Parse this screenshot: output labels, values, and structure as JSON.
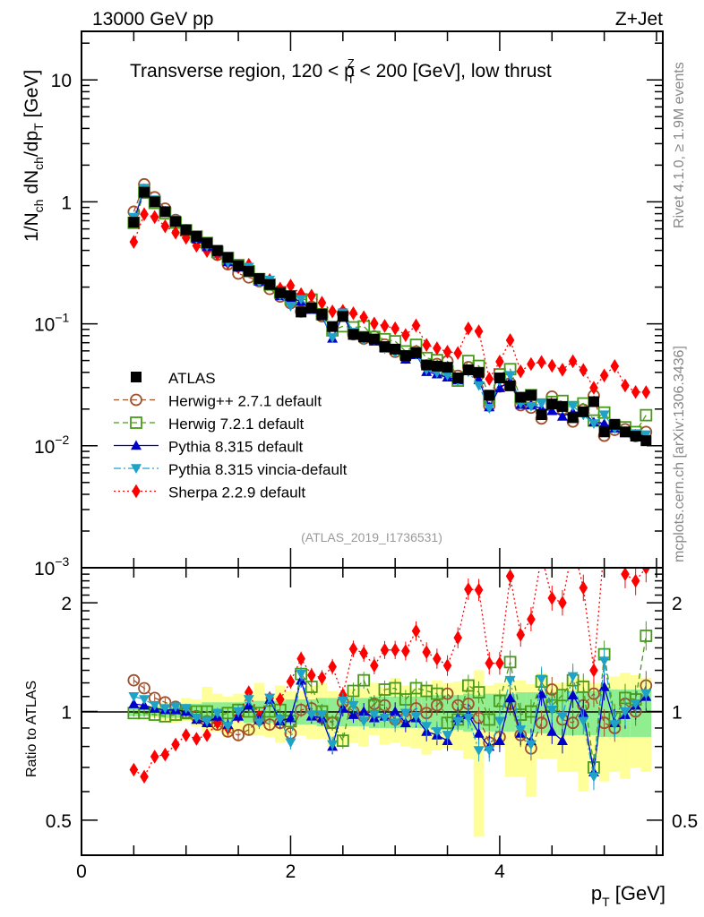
{
  "header": {
    "left": "13000 GeV pp",
    "right": "Z+Jet"
  },
  "side_labels": {
    "rivet": "Rivet 4.1.0, ≥ 1.9M events",
    "mcplots": "mcplots.cern.ch [arXiv:1306.3436]"
  },
  "chart_data": [
    {
      "type": "scatter",
      "panel": "main",
      "title": "Transverse region, 120 < p_T^Z < 200 [GeV], low thrust",
      "title_parts": {
        "pre": "Transverse region, 120 < p",
        "sup": "Z",
        "sub": "T",
        "post": " < 200 [GeV], low thrust"
      },
      "ylabel": "1/N_ch dN_ch/dp_T [GeV]",
      "ylabel_parts": {
        "a": "1/N",
        "a_sub": "ch",
        "b": " dN",
        "b_sub": "ch",
        "c": "/dp",
        "c_sub": "T",
        "d": " [GeV]"
      },
      "xlabel": "",
      "yscale": "log",
      "ylim": [
        0.001,
        25
      ],
      "xlim": [
        0,
        5.56
      ],
      "yticks": [
        {
          "v": 10,
          "label": "10"
        },
        {
          "v": 1,
          "label": "1"
        },
        {
          "v": 0.1,
          "label": "10",
          "exp": "−1"
        },
        {
          "v": 0.01,
          "label": "10",
          "exp": "−2"
        },
        {
          "v": 0.001,
          "label": "10",
          "exp": "−3"
        }
      ],
      "watermark": "(ATLAS_2019_I1736531)",
      "legend_position": "middle-left",
      "x": [
        0.5,
        0.6,
        0.7,
        0.8,
        0.9,
        1.0,
        1.1,
        1.2,
        1.3,
        1.4,
        1.5,
        1.6,
        1.7,
        1.8,
        1.9,
        2.0,
        2.1,
        2.2,
        2.3,
        2.4,
        2.5,
        2.6,
        2.7,
        2.8,
        2.9,
        3.0,
        3.1,
        3.2,
        3.3,
        3.4,
        3.5,
        3.6,
        3.7,
        3.8,
        3.9,
        4.0,
        4.1,
        4.2,
        4.3,
        4.4,
        4.5,
        4.6,
        4.7,
        4.8,
        4.9,
        5.0,
        5.1,
        5.2,
        5.3,
        5.4
      ],
      "series": [
        {
          "name": "ATLAS",
          "color": "#000000",
          "marker": "square-filled",
          "line": "none",
          "values": [
            0.68,
            1.2,
            1.0,
            0.83,
            0.69,
            0.59,
            0.52,
            0.46,
            0.4,
            0.35,
            0.3,
            0.27,
            0.235,
            0.21,
            0.18,
            0.17,
            0.125,
            0.135,
            0.12,
            0.095,
            0.115,
            0.082,
            0.078,
            0.075,
            0.065,
            0.062,
            0.055,
            0.058,
            0.046,
            0.045,
            0.044,
            0.036,
            0.042,
            0.04,
            0.026,
            0.036,
            0.031,
            0.025,
            0.026,
            0.018,
            0.022,
            0.021,
            0.017,
            0.019,
            0.023,
            0.013,
            0.015,
            0.013,
            0.012,
            0.011
          ]
        },
        {
          "name": "Herwig++ 2.7.1 default",
          "color": "#a0522d",
          "marker": "circle-open",
          "line": "dashed",
          "ratio": [
            1.22,
            1.16,
            1.09,
            1.06,
            1.03,
            0.99,
            0.97,
            0.94,
            0.92,
            0.88,
            0.86,
            0.89,
            0.95,
            0.92,
            0.93,
            0.87,
            1.01,
            1.02,
            0.96,
            0.93,
            1.06,
            1.0,
            0.97,
            1.05,
            1.04,
            0.95,
            0.96,
            1.02,
            0.99,
            1.04,
            1.12,
            1.04,
            1.05,
            0.96,
            0.82,
            0.85,
            1.05,
            0.86,
            0.79,
            0.93,
            1.15,
            0.95,
            0.93,
            1.04,
            1.12,
            0.93,
            0.9,
            1.05,
            1.0,
            1.18
          ]
        },
        {
          "name": "Herwig 7.2.1 default",
          "color": "#4a9a1a",
          "marker": "square-open",
          "line": "dashed",
          "ratio": [
            0.99,
            0.99,
            0.98,
            0.97,
            0.98,
            0.99,
            1.0,
            1.0,
            0.97,
            0.99,
            1.01,
            1.0,
            0.99,
            1.0,
            1.01,
            0.94,
            1.27,
            1.17,
            1.0,
            0.93,
            0.83,
            1.14,
            1.22,
            1.04,
            1.15,
            1.16,
            1.08,
            1.16,
            1.14,
            1.12,
            0.93,
            0.95,
            1.18,
            1.13,
            0.95,
            1.07,
            1.37,
            0.98,
            1.0,
            1.21,
            1.04,
            1.11,
            1.22,
            1.17,
            0.7,
            1.44,
            0.96,
            1.09,
            1.08,
            1.62
          ]
        },
        {
          "name": "Pythia 8.315 default",
          "color": "#0000cc",
          "marker": "triangle-up-filled",
          "line": "solid",
          "ratio": [
            1.05,
            1.04,
            1.02,
            1.01,
            1.01,
            1.0,
            0.95,
            0.93,
            0.97,
            0.92,
            0.97,
            1.04,
            0.95,
            1.08,
            0.94,
            0.96,
            1.22,
            0.97,
            0.96,
            0.8,
            1.02,
            0.98,
            1.0,
            0.96,
            0.97,
            1.0,
            0.93,
            0.96,
            0.88,
            0.86,
            0.83,
            0.96,
            0.98,
            0.87,
            0.8,
            0.83,
            1.09,
            0.87,
            0.83,
            1.12,
            0.88,
            0.83,
            1.11,
            0.99,
            0.68,
            1.17,
            0.93,
            0.98,
            1.04,
            1.1
          ]
        },
        {
          "name": "Pythia 8.315 vincia-default",
          "color": "#1fa2c8",
          "marker": "triangle-down-filled",
          "line": "dashdot",
          "ratio": [
            1.1,
            1.08,
            1.04,
            1.02,
            1.03,
            1.02,
            0.96,
            0.94,
            0.99,
            0.91,
            1.0,
            1.08,
            0.93,
            1.09,
            0.95,
            0.82,
            1.27,
            0.98,
            0.98,
            0.81,
            1.07,
            1.04,
            0.94,
            0.98,
            0.96,
            0.93,
            0.99,
            0.97,
            0.91,
            0.88,
            0.86,
            0.94,
            0.96,
            0.78,
            0.78,
            0.94,
            1.22,
            0.89,
            0.81,
            1.23,
            1.01,
            0.97,
            1.25,
            0.94,
            0.66,
            1.38,
            0.92,
            1.0,
            1.05,
            1.12
          ]
        },
        {
          "name": "Sherpa 2.2.9 default",
          "color": "#ff0000",
          "marker": "diamond-filled",
          "line": "dotted",
          "ratio": [
            0.69,
            0.66,
            0.75,
            0.76,
            0.81,
            0.86,
            0.84,
            0.86,
            0.93,
            0.9,
            0.97,
            1.13,
            0.97,
            1.09,
            1.08,
            1.21,
            1.4,
            1.26,
            1.24,
            1.33,
            1.11,
            1.49,
            1.45,
            1.34,
            1.48,
            1.48,
            1.47,
            1.67,
            1.46,
            1.4,
            1.34,
            1.6,
            2.18,
            2.17,
            1.36,
            1.36,
            2.37,
            1.63,
            1.8,
            2.7,
            2.06,
            2.0,
            2.9,
            2.2,
            1.3,
            2.9,
            3.0,
            2.4,
            2.3,
            2.5
          ]
        }
      ]
    },
    {
      "type": "scatter",
      "panel": "ratio",
      "ylabel": "Ratio to ATLAS",
      "xlabel": "p_T [GeV]",
      "xlabel_parts": {
        "a": "p",
        "sub": "T",
        "b": " [GeV]"
      },
      "yscale": "log",
      "ylim": [
        0.4,
        2.5
      ],
      "xlim": [
        0,
        5.56
      ],
      "xticks": [
        {
          "v": 0,
          "label": "0"
        },
        {
          "v": 2,
          "label": "2"
        },
        {
          "v": 4,
          "label": "4"
        }
      ],
      "yticks": [
        {
          "v": 0.5,
          "label": "0.5"
        },
        {
          "v": 1,
          "label": "1"
        },
        {
          "v": 2,
          "label": "2"
        }
      ],
      "bands": {
        "stat_color": "#90ee90",
        "total_color": "#ffff99",
        "stat_halfwidth": [
          0.03,
          0.03,
          0.03,
          0.04,
          0.04,
          0.05,
          0.05,
          0.06,
          0.06,
          0.06,
          0.06,
          0.07,
          0.07,
          0.07,
          0.07,
          0.08,
          0.08,
          0.08,
          0.09,
          0.09,
          0.09,
          0.09,
          0.09,
          0.1,
          0.1,
          0.1,
          0.1,
          0.1,
          0.1,
          0.11,
          0.11,
          0.11,
          0.12,
          0.11,
          0.12,
          0.12,
          0.12,
          0.13,
          0.13,
          0.13,
          0.13,
          0.14,
          0.14,
          0.14,
          0.14,
          0.15,
          0.15,
          0.15,
          0.15,
          0.15
        ],
        "total_up": [
          1.03,
          1.04,
          1.04,
          1.06,
          1.05,
          1.09,
          1.08,
          1.17,
          1.12,
          1.1,
          1.12,
          1.13,
          1.2,
          1.12,
          1.18,
          1.14,
          1.14,
          1.18,
          1.2,
          1.14,
          1.13,
          1.16,
          1.16,
          1.2,
          1.17,
          1.24,
          1.18,
          1.16,
          1.18,
          1.22,
          1.2,
          1.21,
          1.22,
          1.3,
          1.18,
          1.2,
          1.2,
          1.22,
          1.19,
          1.28,
          1.2,
          1.2,
          1.24,
          1.23,
          1.2,
          1.2,
          1.25,
          1.28,
          1.26,
          1.24
        ],
        "total_down": [
          0.97,
          0.97,
          0.96,
          0.94,
          0.93,
          0.94,
          0.91,
          0.88,
          0.88,
          0.85,
          0.88,
          0.86,
          0.86,
          0.85,
          0.82,
          0.86,
          0.86,
          0.84,
          0.84,
          0.8,
          0.8,
          0.82,
          0.8,
          0.86,
          0.81,
          0.82,
          0.8,
          0.79,
          0.76,
          0.78,
          0.79,
          0.78,
          0.74,
          0.45,
          0.8,
          0.8,
          0.66,
          0.66,
          0.58,
          0.74,
          0.74,
          0.68,
          0.68,
          0.6,
          0.67,
          0.64,
          0.68,
          0.65,
          0.7,
          0.68
        ]
      }
    }
  ]
}
